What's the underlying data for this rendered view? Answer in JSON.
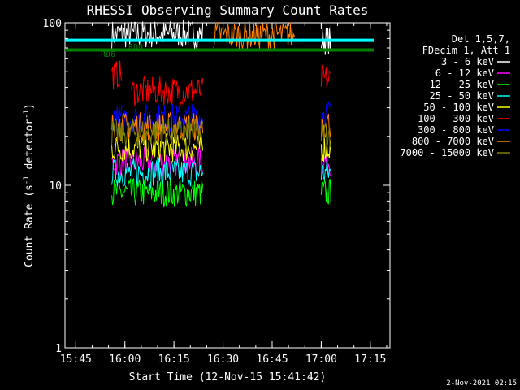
{
  "chart_data": {
    "type": "line",
    "title": "RHESSI Observing Summary Count Rates",
    "xlabel": "Start Time (12-Nov-15 15:41:42)",
    "ylabel": "Count Rate (s⁻¹ detector⁻¹)",
    "ylabel_main": "Count Rate (s",
    "ylabel_sup1": "-1",
    "ylabel_mid": " detector",
    "ylabel_sup2": "-1",
    "ylabel_end": ")",
    "y_scale": "log",
    "ylim": [
      1,
      100
    ],
    "xlim": [
      "15:41:42",
      "17:21:00"
    ],
    "y_ticks": [
      "1",
      "10",
      "100"
    ],
    "x_ticks": [
      "15:45",
      "16:00",
      "16:15",
      "16:30",
      "16:45",
      "17:00",
      "17:15"
    ],
    "legend_header": [
      "Det 1,5,7,",
      "FDecim 1, Att 1"
    ],
    "legend_position": "right",
    "footer_date": "2-Nov-2021 02:15",
    "annotations": [
      {
        "text": "RD6",
        "color": "#008000"
      },
      {
        "text": "RD0",
        "color": "#008000"
      }
    ],
    "series": [
      {
        "name": "3 - 6 keV",
        "color": "#ffffff",
        "segments": [
          {
            "start": "15:56",
            "end": "16:24",
            "level": 85
          },
          {
            "start": "17:00",
            "end": "17:03",
            "level": 78
          }
        ]
      },
      {
        "name": "6 - 12 keV",
        "color": "#ff00ff",
        "segments": [
          {
            "start": "15:56",
            "end": "16:24",
            "level": 14
          },
          {
            "start": "17:00",
            "end": "17:03",
            "level": 14
          }
        ]
      },
      {
        "name": "12 - 25 keV",
        "color": "#00ff00",
        "segments": [
          {
            "start": "15:56",
            "end": "16:24",
            "level": 9
          },
          {
            "start": "17:00",
            "end": "17:03",
            "level": 9
          }
        ]
      },
      {
        "name": "25 - 50 keV",
        "color": "#00ffff",
        "segments": [
          {
            "start": "15:56",
            "end": "16:24",
            "level": 12
          },
          {
            "start": "17:00",
            "end": "17:03",
            "level": 12
          }
        ]
      },
      {
        "name": "50 - 100 keV",
        "color": "#ffff00",
        "segments": [
          {
            "start": "15:56",
            "end": "16:24",
            "level": 17
          },
          {
            "start": "17:00",
            "end": "17:03",
            "level": 17
          }
        ]
      },
      {
        "name": "100 - 300 keV",
        "color": "#ff0000",
        "segments": [
          {
            "start": "15:56",
            "end": "15:59",
            "level": 48
          },
          {
            "start": "16:02",
            "end": "16:24",
            "level": 38
          },
          {
            "start": "17:00",
            "end": "17:03",
            "level": 45
          }
        ]
      },
      {
        "name": "300 - 800 keV",
        "color": "#0000ff",
        "segments": [
          {
            "start": "15:56",
            "end": "16:24",
            "level": 26
          },
          {
            "start": "17:00",
            "end": "17:03",
            "level": 28
          }
        ]
      },
      {
        "name": "800 - 7000 keV",
        "color": "#ff8000",
        "segments": [
          {
            "start": "15:56",
            "end": "16:24",
            "level": 23
          },
          {
            "start": "16:27",
            "end": "16:52",
            "level": 84
          },
          {
            "start": "17:00",
            "end": "17:03",
            "level": 24
          }
        ]
      },
      {
        "name": "7000 - 15000 keV",
        "color": "#808000",
        "segments": [
          {
            "start": "15:56",
            "end": "16:24",
            "level": 21
          },
          {
            "start": "17:00",
            "end": "17:03",
            "level": 21
          }
        ]
      }
    ],
    "flags": [
      {
        "color": "#00ffff",
        "level": 78
      },
      {
        "color": "#008000",
        "level": 68
      }
    ],
    "grid": false
  }
}
